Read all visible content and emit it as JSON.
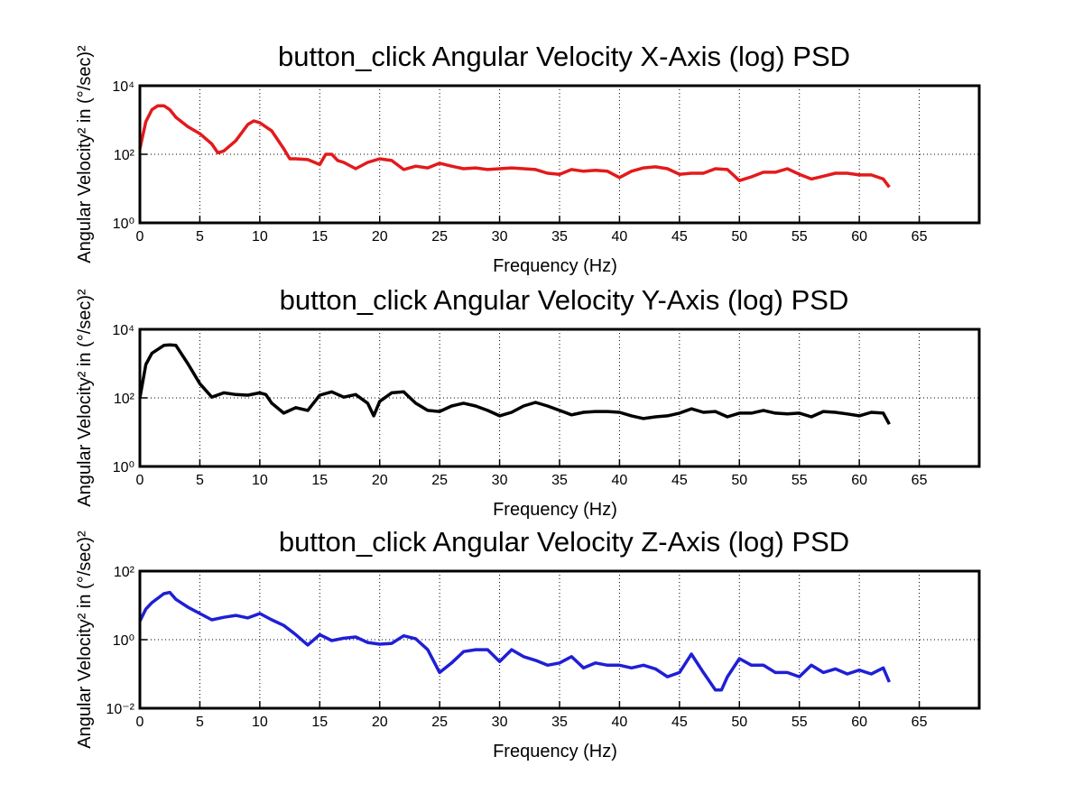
{
  "chart_data": [
    {
      "type": "line",
      "title": "button_click Angular Velocity X-Axis (log) PSD",
      "xlabel": "Frequency (Hz)",
      "ylabel": "Angular Velocity² in (°/sec)²",
      "log_y": true,
      "grid": true,
      "color": "#e31a1c",
      "xlim": [
        0,
        70
      ],
      "xticks": [
        0,
        5,
        10,
        15,
        20,
        25,
        30,
        35,
        40,
        45,
        50,
        55,
        60,
        65
      ],
      "ylim": [
        1,
        10000
      ],
      "yticks": [
        {
          "value": 1,
          "label": "10⁰"
        },
        {
          "value": 100,
          "label": "10²"
        },
        {
          "value": 10000,
          "label": "10⁴"
        }
      ],
      "x": [
        0,
        0.5,
        1,
        1.5,
        2,
        2.5,
        3,
        4,
        5,
        6,
        6.5,
        7,
        8,
        9,
        9.5,
        10,
        11,
        12,
        12.5,
        13,
        14,
        15,
        15.5,
        16,
        16.5,
        17,
        18,
        19,
        20,
        21,
        22,
        23,
        24,
        25,
        26,
        27,
        28,
        29,
        30,
        31,
        32,
        33,
        34,
        35,
        36,
        37,
        38,
        39,
        40,
        41,
        42,
        43,
        44,
        45,
        46,
        47,
        48,
        49,
        50,
        51,
        52,
        53,
        54,
        55,
        56,
        57,
        58,
        59,
        60,
        61,
        62,
        62.5
      ],
      "values": [
        145,
        890,
        2000,
        2600,
        2600,
        2000,
        1200,
        640,
        400,
        200,
        110,
        125,
        250,
        740,
        940,
        830,
        480,
        145,
        74,
        74,
        70,
        50,
        100,
        100,
        66,
        58,
        38,
        58,
        74,
        66,
        36,
        45,
        40,
        55,
        45,
        38,
        40,
        36,
        38,
        40,
        38,
        36,
        28,
        26,
        36,
        32,
        34,
        32,
        21,
        32,
        40,
        43,
        38,
        26,
        28,
        28,
        38,
        36,
        17,
        22,
        30,
        30,
        38,
        26,
        19,
        23,
        28,
        28,
        25,
        25,
        19,
        11
      ]
    },
    {
      "type": "line",
      "title": "button_click Angular Velocity Y-Axis (log) PSD",
      "xlabel": "Frequency (Hz)",
      "ylabel": "Angular Velocity² in (°/sec)²",
      "log_y": true,
      "grid": true,
      "color": "#000000",
      "xlim": [
        0,
        70
      ],
      "xticks": [
        0,
        5,
        10,
        15,
        20,
        25,
        30,
        35,
        40,
        45,
        50,
        55,
        60,
        65
      ],
      "ylim": [
        1,
        10000
      ],
      "yticks": [
        {
          "value": 1,
          "label": "10⁰"
        },
        {
          "value": 100,
          "label": "10²"
        },
        {
          "value": 10000,
          "label": "10⁴"
        }
      ],
      "x": [
        0,
        0.5,
        1,
        2,
        2.5,
        3,
        4,
        5,
        6,
        7,
        8,
        9,
        10,
        10.5,
        11,
        12,
        13,
        14,
        15,
        16,
        17,
        18,
        19,
        19.5,
        20,
        21,
        22,
        23,
        24,
        25,
        26,
        27,
        28,
        29,
        30,
        31,
        32,
        33,
        34,
        35,
        36,
        37,
        38,
        39,
        40,
        41,
        42,
        43,
        44,
        45,
        46,
        47,
        48,
        49,
        50,
        51,
        52,
        53,
        54,
        55,
        56,
        57,
        58,
        59,
        60,
        61,
        62,
        62.5
      ],
      "values": [
        100,
        940,
        2000,
        3400,
        3500,
        3400,
        1000,
        260,
        105,
        140,
        125,
        120,
        140,
        125,
        70,
        36,
        52,
        43,
        120,
        150,
        105,
        125,
        70,
        30,
        79,
        140,
        150,
        70,
        43,
        40,
        58,
        70,
        58,
        43,
        30,
        38,
        58,
        74,
        58,
        43,
        32,
        38,
        40,
        40,
        38,
        30,
        25,
        28,
        30,
        36,
        48,
        38,
        40,
        28,
        36,
        36,
        43,
        36,
        34,
        36,
        28,
        40,
        38,
        34,
        30,
        38,
        36,
        17
      ]
    },
    {
      "type": "line",
      "title": "button_click Angular Velocity Z-Axis (log) PSD",
      "xlabel": "Frequency (Hz)",
      "ylabel": "Angular Velocity² in (°/sec)²",
      "log_y": true,
      "grid": true,
      "color": "#1f1fd6",
      "xlim": [
        0,
        70
      ],
      "xticks": [
        0,
        5,
        10,
        15,
        20,
        25,
        30,
        35,
        40,
        45,
        50,
        55,
        60,
        65
      ],
      "ylim": [
        0.01,
        100
      ],
      "yticks": [
        {
          "value": 0.01,
          "label": "10⁻²"
        },
        {
          "value": 1,
          "label": "10⁰"
        },
        {
          "value": 100,
          "label": "10²"
        }
      ],
      "x": [
        0,
        0.5,
        1,
        2,
        2.5,
        3,
        4,
        5,
        6,
        7,
        8,
        9,
        10,
        11,
        12,
        13,
        14,
        15,
        16,
        17,
        18,
        19,
        20,
        21,
        22,
        23,
        24,
        25,
        26,
        27,
        28,
        29,
        30,
        31,
        32,
        33,
        34,
        35,
        36,
        37,
        38,
        39,
        40,
        41,
        42,
        43,
        44,
        45,
        46,
        47,
        48,
        48.5,
        49,
        50,
        51,
        52,
        53,
        54,
        55,
        56,
        57,
        58,
        59,
        60,
        61,
        62,
        62.5
      ],
      "values": [
        3.5,
        7.8,
        12,
        22,
        24,
        15,
        8.9,
        5.8,
        3.8,
        4.5,
        5.1,
        4.3,
        5.8,
        3.8,
        2.6,
        1.4,
        0.7,
        1.4,
        0.94,
        1.1,
        1.2,
        0.83,
        0.74,
        0.78,
        1.3,
        1.06,
        0.51,
        0.11,
        0.21,
        0.45,
        0.51,
        0.51,
        0.23,
        0.51,
        0.32,
        0.25,
        0.18,
        0.21,
        0.32,
        0.15,
        0.21,
        0.18,
        0.18,
        0.15,
        0.18,
        0.14,
        0.083,
        0.11,
        0.38,
        0.11,
        0.034,
        0.034,
        0.083,
        0.28,
        0.18,
        0.18,
        0.11,
        0.11,
        0.083,
        0.18,
        0.11,
        0.14,
        0.1,
        0.13,
        0.1,
        0.15,
        0.058
      ]
    }
  ]
}
